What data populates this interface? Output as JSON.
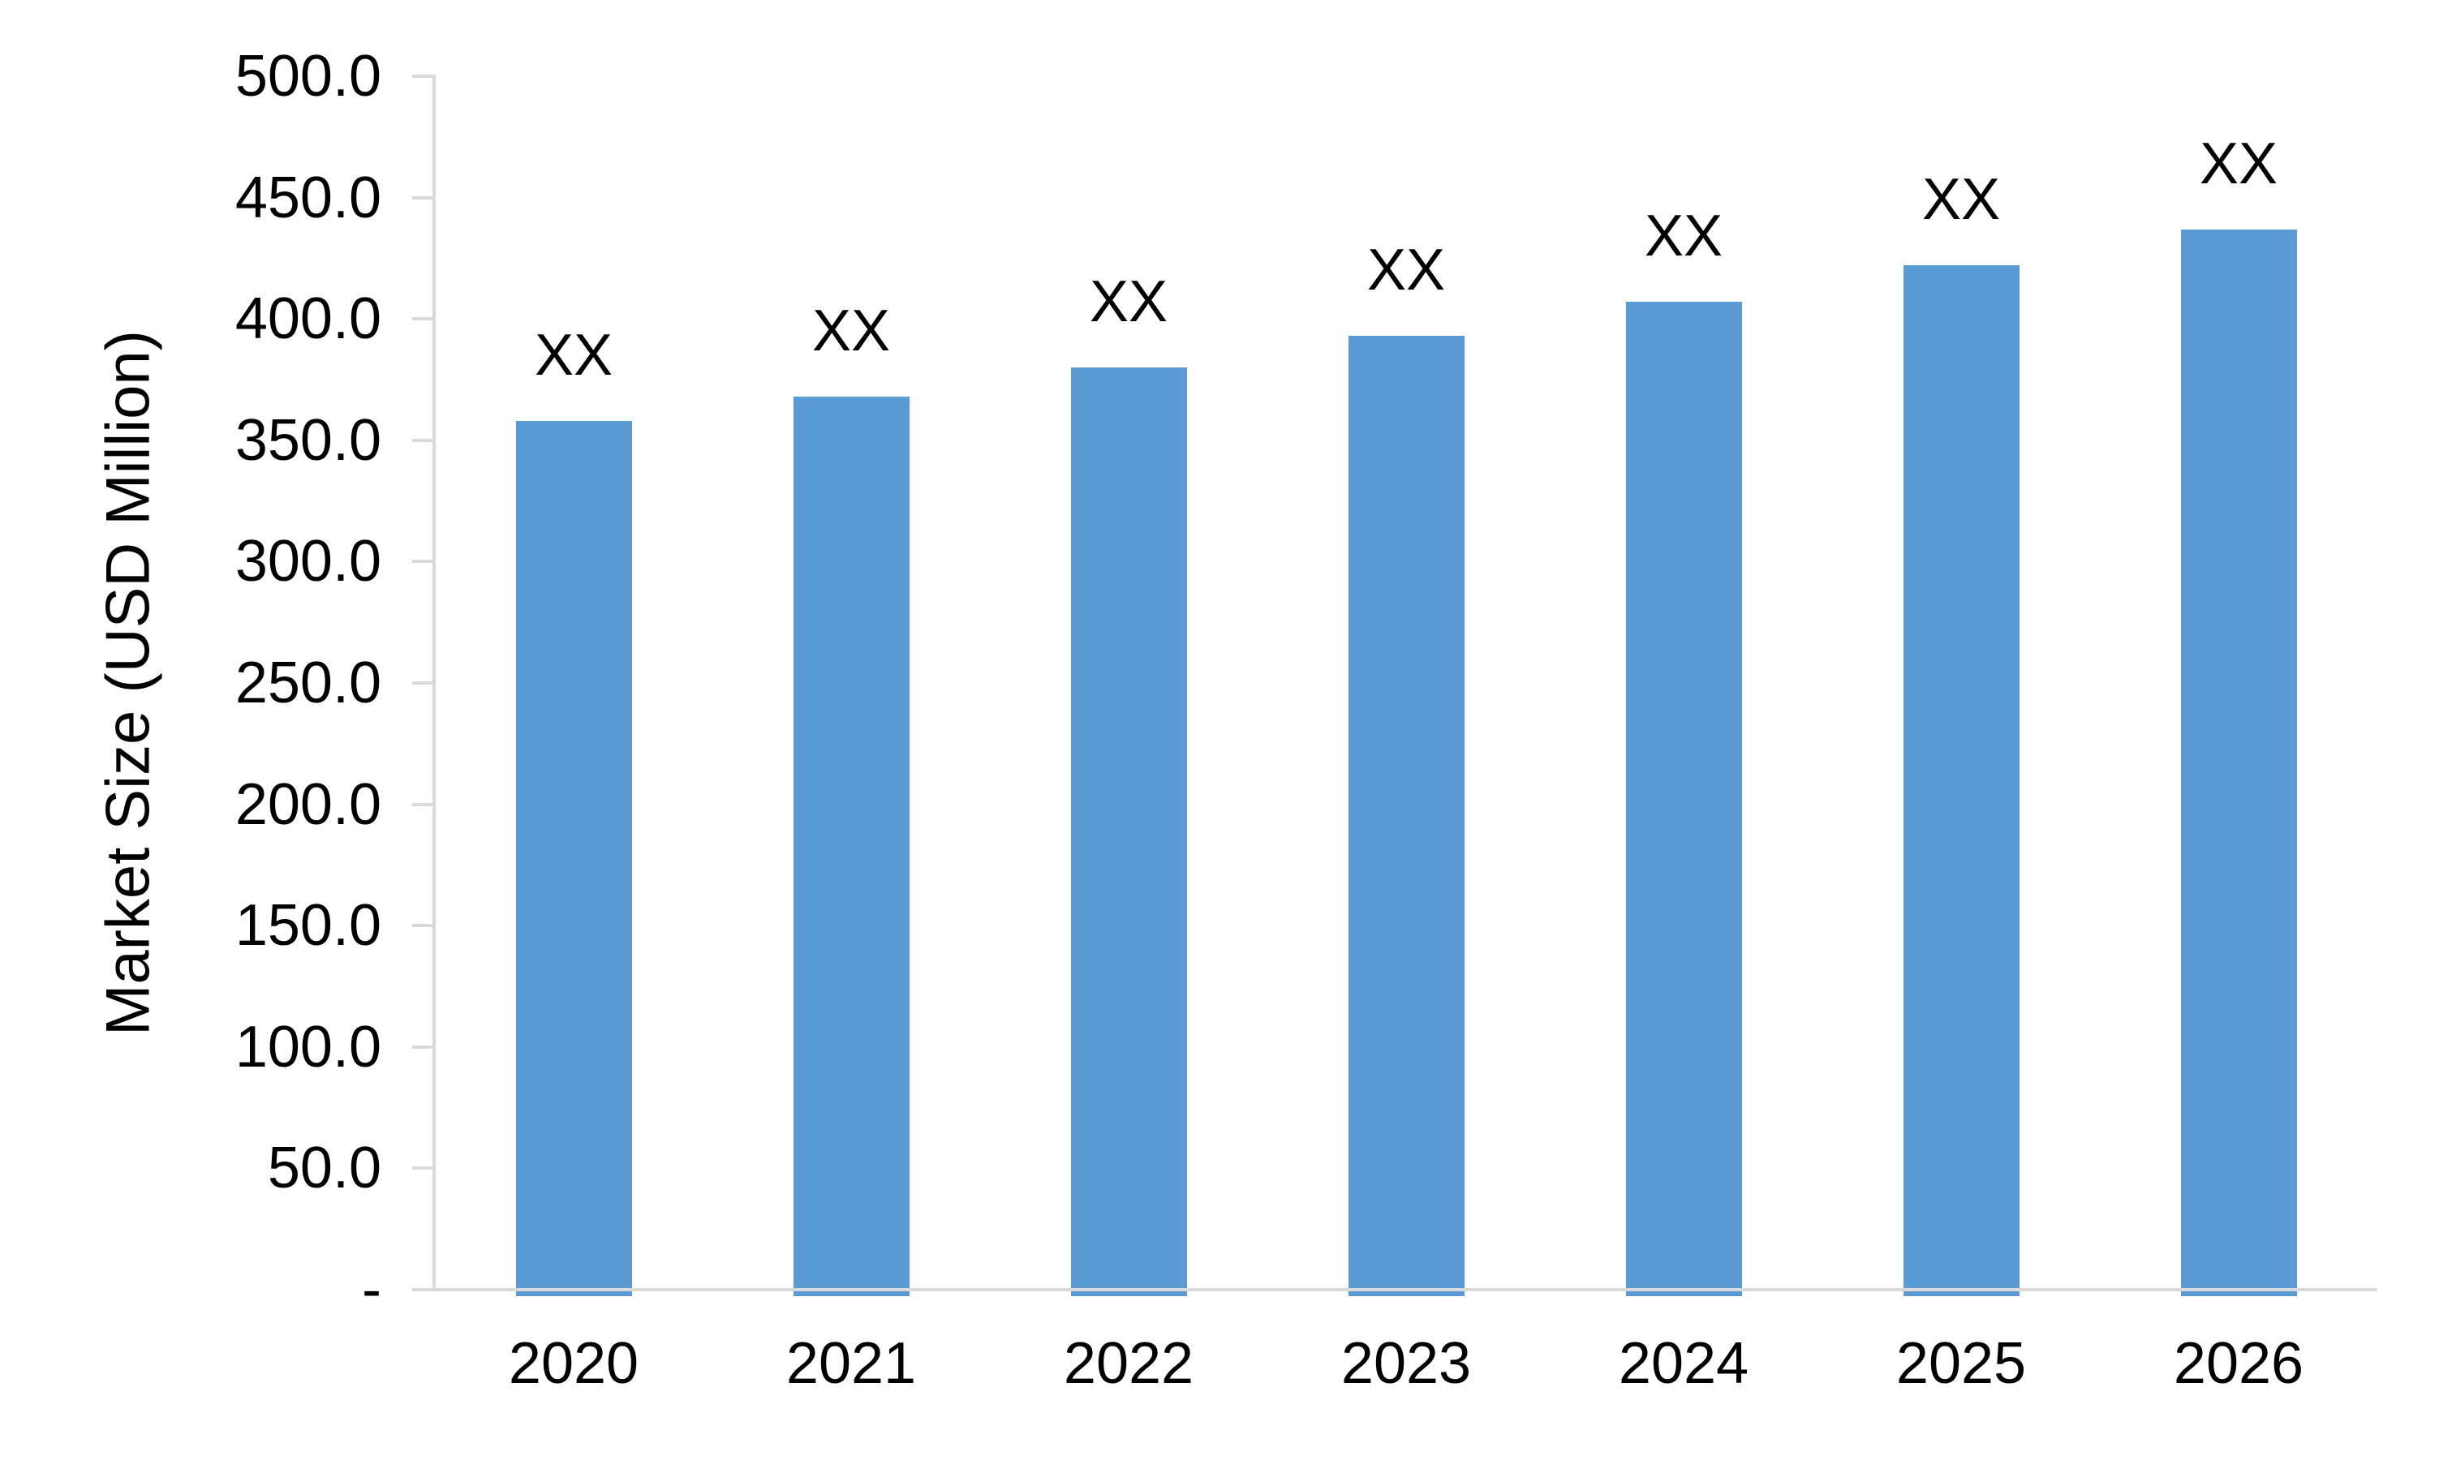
{
  "chart_data": {
    "type": "bar",
    "title": "",
    "categories": [
      "2020",
      "2021",
      "2022",
      "2023",
      "2024",
      "2025",
      "2026"
    ],
    "values": [
      358,
      368,
      380,
      393,
      407,
      422,
      437
    ],
    "data_labels": [
      "XX",
      "XX",
      "XX",
      "XX",
      "XX",
      "XX",
      "XX"
    ],
    "xlabel": "",
    "ylabel": "Market Size (USD Million)",
    "ylim": [
      0,
      500
    ],
    "ytick_step": 50,
    "ytick_labels": [
      "500.0",
      "450.0",
      "400.0",
      "350.0",
      "300.0",
      "250.0",
      "200.0",
      "150.0",
      "100.0",
      "50.0",
      "-"
    ],
    "grid": false,
    "legend": false,
    "series_name": "Market Size",
    "bar_color": "#5B9BD5",
    "axis_color": "#D9D9D9",
    "text_color": "#000000"
  }
}
